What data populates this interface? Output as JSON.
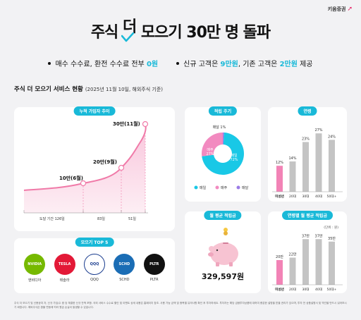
{
  "brand": "키움증권",
  "headline": {
    "part1": "주식",
    "part2_top": "더",
    "part3": "모으기 30만 명 돌파"
  },
  "bullets": [
    {
      "pre": "매수 수수료, 환전 수수료 전부 ",
      "hl": "0원",
      "post": ""
    },
    {
      "pre": "신규 고객은 ",
      "hl": "9만원",
      "mid": ", 기존 고객은 ",
      "hl2": "2만원",
      "post": " 제공"
    }
  ],
  "section": {
    "title": "주식 더 모으기 서비스 현황",
    "sub": "(2025년 11월 10일, 해외주식 기준)"
  },
  "cumulative": {
    "title": "누적 가입자 추이",
    "milestones": [
      "10만(6월)",
      "20만(9월)",
      "30만(11월)"
    ],
    "periods": [
      "도달 기간 126일",
      "83일",
      "51일"
    ]
  },
  "top5": {
    "title": "모으기 TOP 5",
    "items": [
      {
        "logo": "NVIDIA",
        "name": "엔비디아",
        "color": "#76b900"
      },
      {
        "logo": "TESLA",
        "name": "테슬라",
        "color": "#e31937"
      },
      {
        "logo": "QQQ",
        "name": "QQQ",
        "color": "#ffffff"
      },
      {
        "logo": "SCHD",
        "name": "SCHD",
        "color": "#1b6db5"
      },
      {
        "logo": "PLTR",
        "name": "PLTR",
        "color": "#111111"
      }
    ]
  },
  "chart_data": [
    {
      "type": "pie",
      "title": "적립 주기",
      "categories": [
        "매일",
        "매주",
        "매달"
      ],
      "values": [
        72,
        27,
        1
      ],
      "labels": [
        "매일\n72%",
        "매주\n27%",
        "매달 1%"
      ],
      "colors": [
        "#19c8e6",
        "#f28ac0",
        "#9b7be6"
      ]
    },
    {
      "type": "bar",
      "title": "연령",
      "categories": [
        "미성년",
        "20대",
        "30대",
        "40대",
        "50대+"
      ],
      "values": [
        12,
        14,
        23,
        27,
        24
      ],
      "labels": [
        "12%",
        "14%",
        "23%",
        "27%",
        "24%"
      ],
      "highlight": "#f283b6",
      "bar_color": "#c4c4c4"
    },
    {
      "type": "bar",
      "title": "연령별 월 평균 적립금",
      "unit": "(단위 : 원)",
      "categories": [
        "미성년",
        "20대",
        "30대",
        "40대",
        "50대+"
      ],
      "values": [
        20,
        22,
        37,
        37,
        35
      ],
      "labels": [
        "20만",
        "22만",
        "37만",
        "37만",
        "35만"
      ],
      "highlight": "#f283b6",
      "bar_color": "#c4c4c4"
    }
  ],
  "monthly_avg": {
    "title": "월 평균 적립금",
    "amount": "329,597원"
  },
  "footnote": "주식 더 모으기 및 신용공여 자, 신규 가입/수 중 당 체결한 신규 잔액 포함. 국외 서비스 수수료 할인 및 이벤트 상세 내용은 홈페이지 참조. 사용 가능 금액 및 종목별 유의사항 확인 후 투자하세요. 투자자는 해당 금융투자상품에 대하여 충분한 설명을 받을 권리가 있으며, 투자 전 상품설명서 및 약관을 반드시 읽어보시기 바랍니다. 해외주식은 환율 변동에 따라 원금 손실이 발생할 수 있습니다."
}
